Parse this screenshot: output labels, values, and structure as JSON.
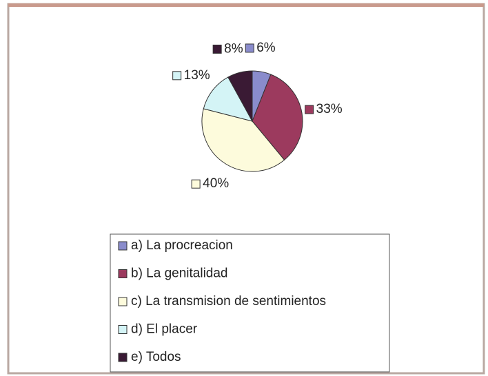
{
  "chart_data": {
    "type": "pie",
    "categories": [
      "a) La procreacion",
      "b) La genitalidad",
      "c) La transmision de sentimientos",
      "d) El placer",
      "e) Todos"
    ],
    "values": [
      6,
      33,
      40,
      13,
      8
    ],
    "value_labels": [
      "6%",
      "33%",
      "40%",
      "13%",
      "8%"
    ],
    "colors": [
      "#8a8ccc",
      "#9c3a5e",
      "#fdfbdc",
      "#d4f4f6",
      "#3a1a34"
    ],
    "legend": "bottom"
  }
}
